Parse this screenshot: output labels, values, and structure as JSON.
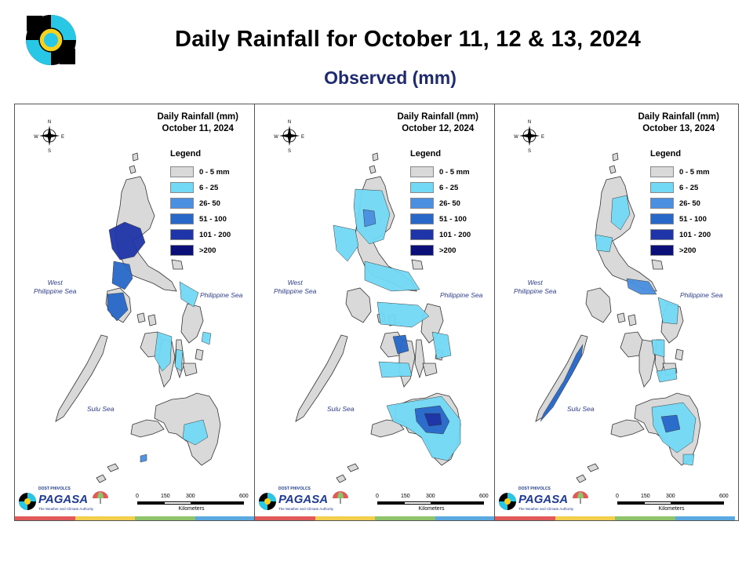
{
  "header": {
    "title": "Daily Rainfall for October 11, 12 & 13, 2024",
    "subtitle": "Observed (mm)"
  },
  "legend": {
    "title": "Legend",
    "items": [
      {
        "label": "0 - 5 mm",
        "color": "#d9d9d9"
      },
      {
        "label": "6 - 25",
        "color": "#72d9f5"
      },
      {
        "label": "26- 50",
        "color": "#4a8fe0"
      },
      {
        "label": "51 - 100",
        "color": "#2868c9"
      },
      {
        "label": "101 - 200",
        "color": "#1f34a8"
      },
      {
        "label": ">200",
        "color": "#0b0f7a"
      }
    ]
  },
  "maps": [
    {
      "heading": "Daily Rainfall (mm)",
      "date": "October 11, 2024"
    },
    {
      "heading": "Daily Rainfall (mm)",
      "date": "October 12, 2024"
    },
    {
      "heading": "Daily Rainfall (mm)",
      "date": "October 13, 2024"
    }
  ],
  "labels": {
    "west_sea": "West\nPhilippine Sea",
    "east_sea": "Philippine Sea",
    "sulu_sea": "Sulu Sea",
    "compass_n": "N",
    "compass_s": "S",
    "compass_e": "E",
    "compass_w": "W"
  },
  "scale": {
    "ticks": [
      "0",
      "150",
      "300",
      "600"
    ],
    "unit": "Kilometers"
  },
  "branding": {
    "agency": "PAGASA",
    "agency_top": "DOST PHIVOLCS",
    "tagline": "The Weather and Climate Authority"
  },
  "colors": {
    "land": "#d9d9d9",
    "strip": [
      "#e05a5a",
      "#f2cf4d",
      "#8fc46a",
      "#5aa9e0"
    ]
  }
}
